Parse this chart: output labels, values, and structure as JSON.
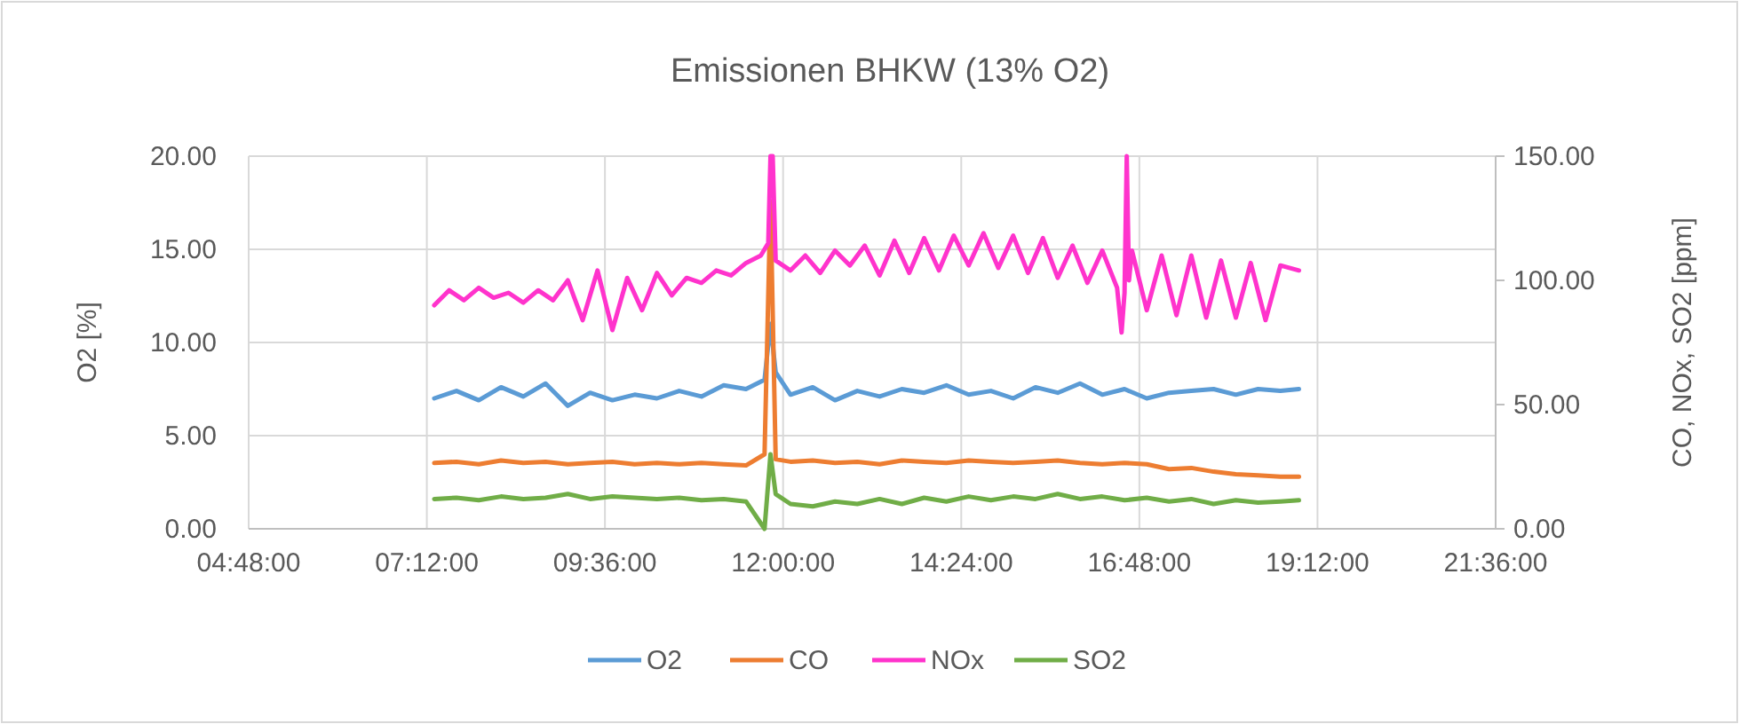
{
  "chart_data": {
    "type": "line",
    "title": "Emissionen BHKW (13% O2)",
    "ylabel": "O2 [%]",
    "y2label": "CO, NOx, SO2 [ppm]",
    "xlim": [
      4.8,
      21.6
    ],
    "xticks": [
      {
        "value": 4.8,
        "label": "04:48:00"
      },
      {
        "value": 7.2,
        "label": "07:12:00"
      },
      {
        "value": 9.6,
        "label": "09:36:00"
      },
      {
        "value": 12,
        "label": "12:00:00"
      },
      {
        "value": 14.4,
        "label": "14:24:00"
      },
      {
        "value": 16.8,
        "label": "16:48:00"
      },
      {
        "value": 19.2,
        "label": "19:12:00"
      },
      {
        "value": 21.6,
        "label": "21:36:00"
      }
    ],
    "ylim": [
      0,
      20
    ],
    "yticks": [
      {
        "value": 0,
        "label": "0.00"
      },
      {
        "value": 5,
        "label": "5.00"
      },
      {
        "value": 10,
        "label": "10.00"
      },
      {
        "value": 15,
        "label": "15.00"
      },
      {
        "value": 20,
        "label": "20.00"
      }
    ],
    "y2lim": [
      0,
      150
    ],
    "y2ticks": [
      {
        "value": 0,
        "label": "0.00"
      },
      {
        "value": 50,
        "label": "50.00"
      },
      {
        "value": 100,
        "label": "100.00"
      },
      {
        "value": 150,
        "label": "150.00"
      }
    ],
    "grid": true,
    "legend": "bottom",
    "marker": "none",
    "line_style": "solid",
    "series": [
      {
        "name": "O2",
        "color": "#5b9bd5",
        "x": [
          7.3,
          7.6,
          7.9,
          8.2,
          8.5,
          8.8,
          9.1,
          9.4,
          9.7,
          10.0,
          10.3,
          10.6,
          10.9,
          11.2,
          11.5,
          11.75,
          11.83,
          11.9,
          12.1,
          12.4,
          12.7,
          13.0,
          13.3,
          13.6,
          13.9,
          14.2,
          14.5,
          14.8,
          15.1,
          15.4,
          15.7,
          16.0,
          16.3,
          16.6,
          16.9,
          17.2,
          17.5,
          17.8,
          18.1,
          18.4,
          18.7,
          18.95
        ],
        "values": [
          7.0,
          7.4,
          6.9,
          7.6,
          7.1,
          7.8,
          6.6,
          7.3,
          6.9,
          7.2,
          7.0,
          7.4,
          7.1,
          7.7,
          7.5,
          8.0,
          11.0,
          8.4,
          7.2,
          7.6,
          6.9,
          7.4,
          7.1,
          7.5,
          7.3,
          7.7,
          7.2,
          7.4,
          7.0,
          7.6,
          7.3,
          7.8,
          7.2,
          7.5,
          7.0,
          7.3,
          7.4,
          7.5,
          7.2,
          7.5,
          7.4,
          7.5
        ]
      },
      {
        "name": "CO",
        "color": "#ed7d31",
        "axis": "y2",
        "x": [
          7.3,
          7.6,
          7.9,
          8.2,
          8.5,
          8.8,
          9.1,
          9.4,
          9.7,
          10.0,
          10.3,
          10.6,
          10.9,
          11.2,
          11.5,
          11.75,
          11.83,
          11.9,
          12.1,
          12.4,
          12.7,
          13.0,
          13.3,
          13.6,
          13.9,
          14.2,
          14.5,
          14.8,
          15.1,
          15.4,
          15.7,
          16.0,
          16.3,
          16.6,
          16.9,
          17.2,
          17.5,
          17.8,
          18.1,
          18.4,
          18.7,
          18.95
        ],
        "values": [
          26.5,
          27,
          26,
          27.5,
          26.5,
          27,
          26,
          26.5,
          27,
          26,
          26.5,
          26,
          26.5,
          26,
          25.5,
          30,
          132,
          28,
          27,
          27.5,
          26.5,
          27,
          26,
          27.5,
          27,
          26.5,
          27.5,
          27,
          26.5,
          27,
          27.5,
          26.5,
          26,
          26.5,
          26,
          24,
          24.5,
          23,
          22,
          21.5,
          21,
          21
        ]
      },
      {
        "name": "NOx",
        "color": "#ff33cc",
        "axis": "y2",
        "x": [
          7.3,
          7.5,
          7.7,
          7.9,
          8.1,
          8.3,
          8.5,
          8.7,
          8.9,
          9.1,
          9.3,
          9.5,
          9.7,
          9.9,
          10.1,
          10.3,
          10.5,
          10.7,
          10.9,
          11.1,
          11.3,
          11.5,
          11.7,
          11.8,
          11.83,
          11.86,
          11.9,
          12.1,
          12.3,
          12.5,
          12.7,
          12.9,
          13.1,
          13.3,
          13.5,
          13.7,
          13.9,
          14.1,
          14.3,
          14.5,
          14.7,
          14.9,
          15.1,
          15.3,
          15.5,
          15.7,
          15.9,
          16.1,
          16.3,
          16.5,
          16.56,
          16.6,
          16.63,
          16.66,
          16.7,
          16.9,
          17.1,
          17.3,
          17.5,
          17.7,
          17.9,
          18.1,
          18.3,
          18.5,
          18.7,
          18.95
        ],
        "values": [
          90,
          96,
          92,
          97,
          93,
          95,
          91,
          96,
          92,
          100,
          84,
          104,
          80,
          101,
          88,
          103,
          94,
          101,
          99,
          104,
          102,
          107,
          110,
          115,
          150,
          150,
          108,
          104,
          110,
          103,
          112,
          106,
          114,
          102,
          116,
          103,
          117,
          104,
          118,
          106,
          119,
          105,
          118,
          103,
          117,
          101,
          114,
          99,
          112,
          97,
          79,
          95,
          150,
          100,
          112,
          88,
          110,
          86,
          110,
          85,
          108,
          85,
          107,
          84,
          106,
          104
        ]
      },
      {
        "name": "SO2",
        "color": "#70ad47",
        "axis": "y2",
        "x": [
          7.3,
          7.6,
          7.9,
          8.2,
          8.5,
          8.8,
          9.1,
          9.4,
          9.7,
          10.0,
          10.3,
          10.6,
          10.9,
          11.2,
          11.5,
          11.75,
          11.83,
          11.9,
          12.1,
          12.4,
          12.7,
          13.0,
          13.3,
          13.6,
          13.9,
          14.2,
          14.5,
          14.8,
          15.1,
          15.4,
          15.7,
          16.0,
          16.3,
          16.6,
          16.9,
          17.2,
          17.5,
          17.8,
          18.1,
          18.4,
          18.7,
          18.95
        ],
        "values": [
          12,
          12.5,
          11.5,
          13,
          12,
          12.5,
          14,
          12,
          13,
          12.5,
          12,
          12.5,
          11.5,
          12,
          11,
          0,
          30,
          14,
          10,
          9,
          11,
          10,
          12,
          10,
          12.5,
          11,
          13,
          11.5,
          13,
          12,
          14,
          12,
          13,
          11.5,
          12.5,
          11,
          12,
          10,
          11.5,
          10.5,
          11,
          11.5
        ]
      }
    ]
  }
}
